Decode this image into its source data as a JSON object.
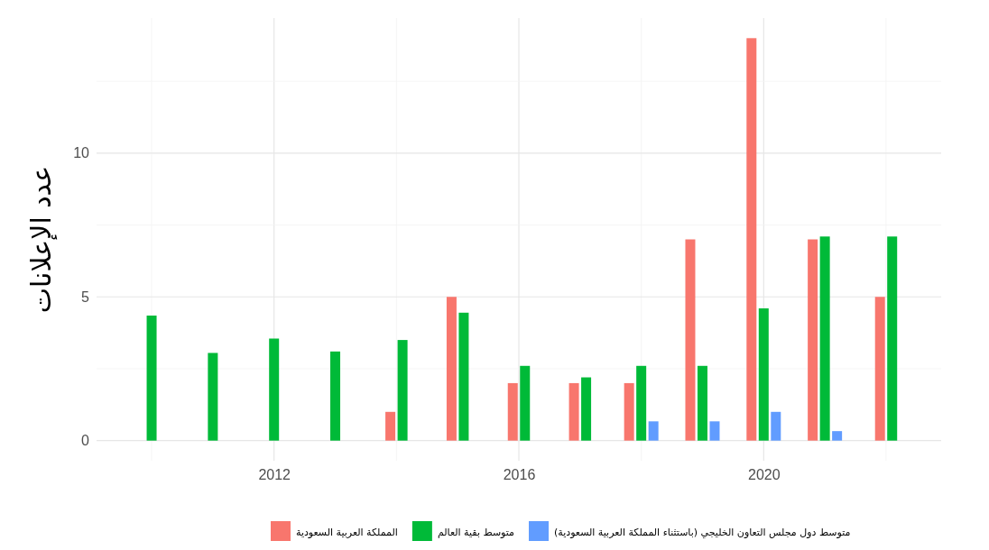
{
  "chart_data": {
    "type": "bar",
    "ylabel": "عدد الإعلانات",
    "x": [
      2010,
      2011,
      2012,
      2013,
      2014,
      2015,
      2016,
      2017,
      2018,
      2019,
      2020,
      2021,
      2022
    ],
    "series": [
      {
        "name": "المملكة العربية السعودية",
        "color": "#f8766d",
        "values": [
          null,
          null,
          null,
          null,
          1,
          5,
          2,
          2,
          2,
          7,
          14,
          7,
          5
        ]
      },
      {
        "name": "متوسط بقية العالم",
        "color": "#00ba38",
        "values": [
          4.35,
          3.05,
          3.55,
          3.1,
          3.5,
          4.45,
          2.6,
          2.2,
          2.6,
          2.6,
          4.6,
          7.1,
          7.1
        ]
      },
      {
        "name": "متوسط دول مجلس التعاون الخليجي (باستثناء المملكة العربية السعودية)",
        "color": "#619cff",
        "values": [
          null,
          null,
          null,
          null,
          null,
          null,
          null,
          null,
          0.67,
          0.67,
          1,
          0.33,
          null
        ]
      }
    ],
    "xlim": [
      2009.1,
      2022.9
    ],
    "xticks": [
      2012,
      2016,
      2020
    ],
    "ylim": [
      -0.7,
      14.7
    ],
    "yticks": [
      0,
      5,
      10
    ],
    "grid": true,
    "legend": "bottom"
  }
}
